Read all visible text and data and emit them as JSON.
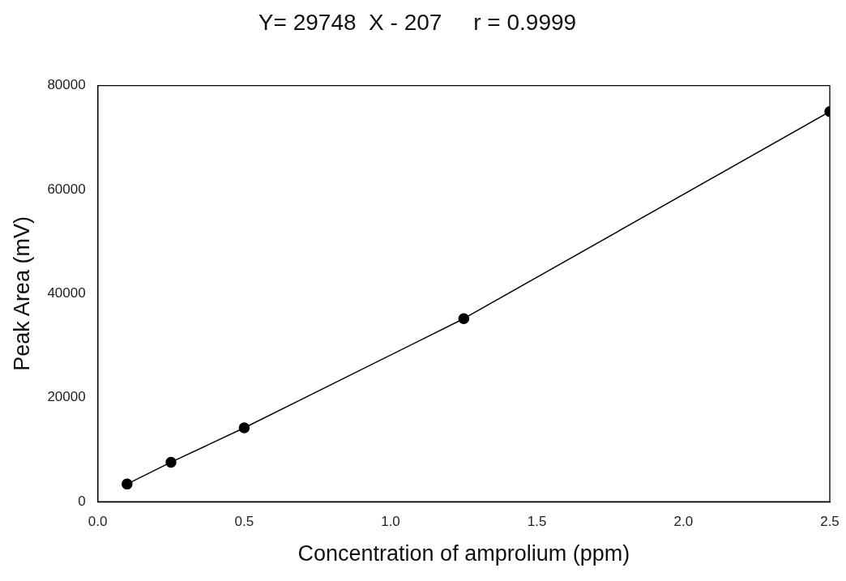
{
  "chart_data": {
    "type": "line",
    "title": "Y= 29748  X - 207     r = 0.9999",
    "xlabel": "Concentration of amprolium (ppm)",
    "ylabel": "Peak Area (mV)",
    "x": [
      0.1,
      0.25,
      0.5,
      1.25,
      2.5
    ],
    "series": [
      {
        "color": "#000000",
        "values": [
          3400,
          7600,
          14200,
          35200,
          75000
        ]
      }
    ],
    "marker": "circle",
    "line_style": "solid",
    "xlim": [
      0,
      2.5
    ],
    "ylim": [
      0,
      80000
    ],
    "xticks": [
      {
        "value": 0,
        "label": "0.0"
      },
      {
        "value": 0.5,
        "label": "0.5"
      },
      {
        "value": 1,
        "label": "1.0"
      },
      {
        "value": 1.5,
        "label": "1.5"
      },
      {
        "value": 2,
        "label": "2.0"
      },
      {
        "value": 2.5,
        "label": "2.5"
      }
    ],
    "yticks": [
      0,
      20000,
      40000,
      60000,
      80000
    ],
    "grid": false,
    "legend": false
  }
}
